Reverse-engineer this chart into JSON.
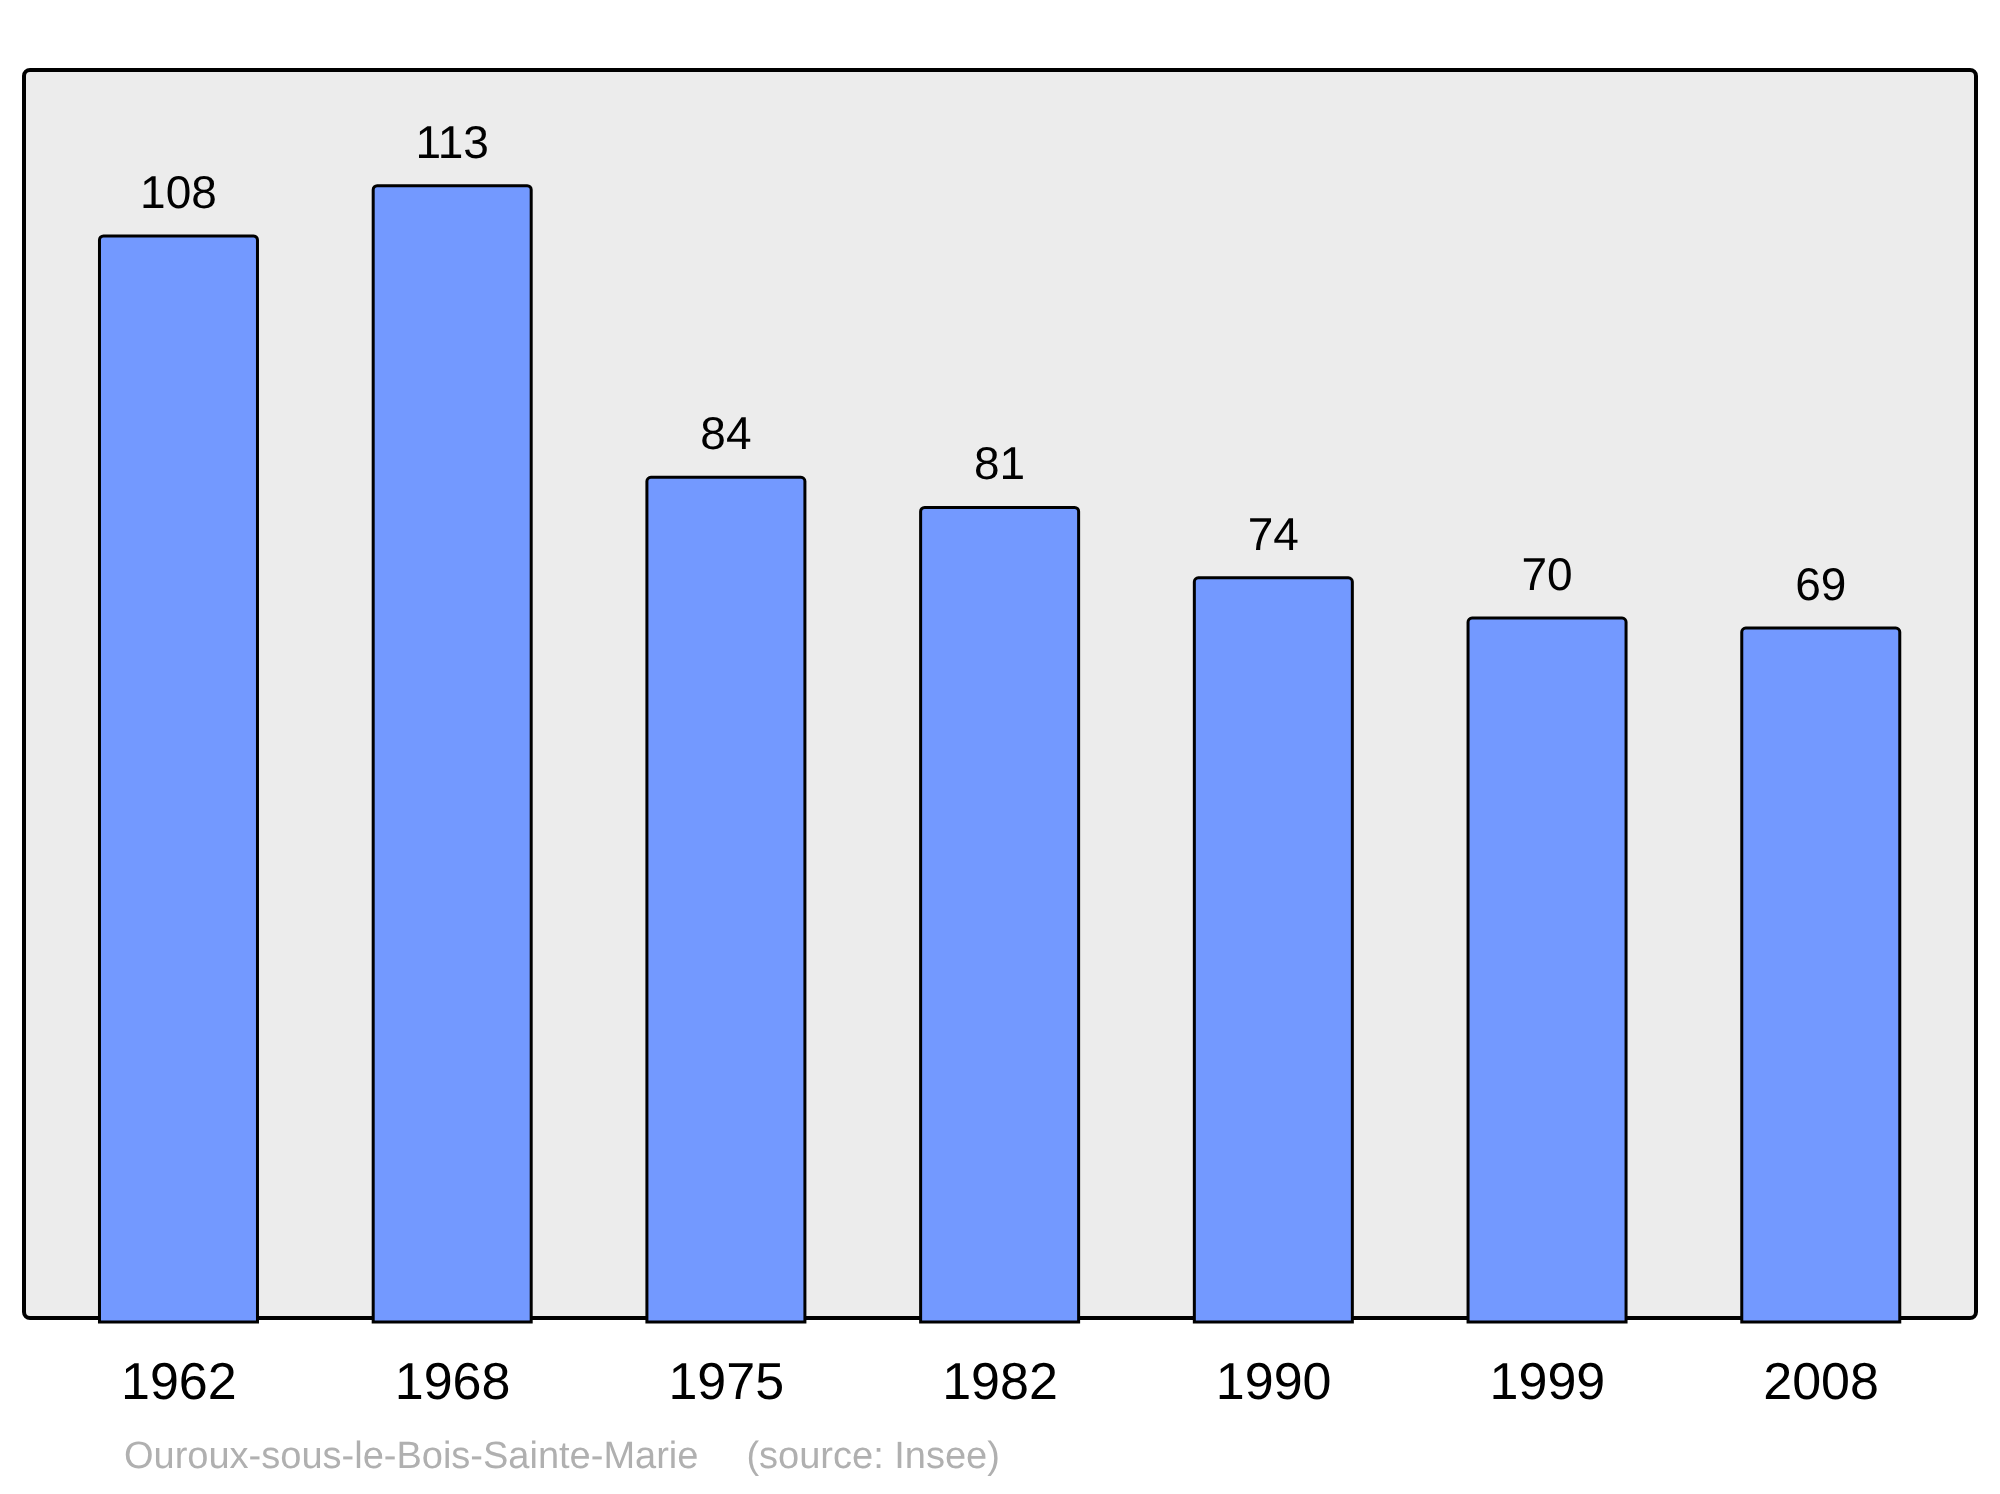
{
  "chart_data": {
    "type": "bar",
    "categories": [
      "1962",
      "1968",
      "1975",
      "1982",
      "1990",
      "1999",
      "2008"
    ],
    "values": [
      108,
      113,
      84,
      81,
      74,
      70,
      69
    ],
    "color": "#7399ff",
    "data_labels": true,
    "annotations": [
      "Ouroux-sous-le-Bois-Sainte-Marie",
      "(source: Insee)"
    ]
  }
}
